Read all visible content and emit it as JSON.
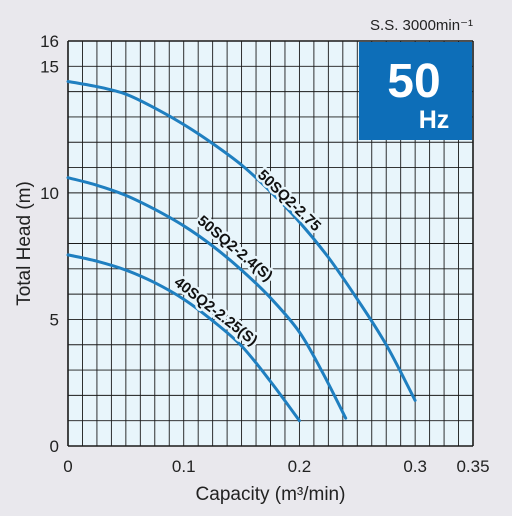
{
  "chart_data": {
    "type": "line",
    "xlabel": "Capacity (m³/min)",
    "ylabel": "Total Head (m)",
    "xlim": [
      0,
      0.35
    ],
    "ylim": [
      0,
      16
    ],
    "x_ticks": [
      "0",
      "0.1",
      "0.2",
      "0.3",
      "0.35"
    ],
    "x_tick_values": [
      0,
      0.1,
      0.2,
      0.3,
      0.35
    ],
    "y_ticks": [
      "0",
      "5",
      "10",
      "15",
      "16"
    ],
    "y_tick_values": [
      0,
      5,
      10,
      15,
      16
    ],
    "grid": true,
    "series": [
      {
        "name": "50SQ2-2.75",
        "color": "#1f7fc0",
        "x": [
          0,
          0.025,
          0.05,
          0.075,
          0.1,
          0.125,
          0.15,
          0.175,
          0.2,
          0.225,
          0.25,
          0.275,
          0.3
        ],
        "y": [
          14.4,
          14.2,
          13.9,
          13.35,
          12.7,
          11.95,
          11.1,
          10.05,
          8.85,
          7.45,
          5.8,
          4.0,
          1.8
        ]
      },
      {
        "name": "50SQ2-2.4(S)",
        "color": "#1f7fc0",
        "x": [
          0,
          0.025,
          0.05,
          0.075,
          0.1,
          0.125,
          0.15,
          0.175,
          0.2,
          0.22,
          0.24
        ],
        "y": [
          10.6,
          10.3,
          9.9,
          9.35,
          8.7,
          7.9,
          6.95,
          5.85,
          4.5,
          2.9,
          1.1
        ]
      },
      {
        "name": "40SQ2-2.25(S)",
        "color": "#1f7fc0",
        "x": [
          0,
          0.025,
          0.05,
          0.075,
          0.1,
          0.125,
          0.15,
          0.175,
          0.2
        ],
        "y": [
          7.55,
          7.3,
          6.95,
          6.45,
          5.8,
          4.95,
          3.95,
          2.55,
          1.0
        ]
      }
    ]
  },
  "speed_label": "S.S. 3000min⁻¹",
  "badge": {
    "value": "50",
    "unit": "Hz",
    "color": "#0d6eb8"
  },
  "colors": {
    "plot_bg": "#e8f5fb",
    "grid": "#1a1a1a",
    "curve": "#1f7fc0",
    "page_bg": "#e9e8ed"
  }
}
